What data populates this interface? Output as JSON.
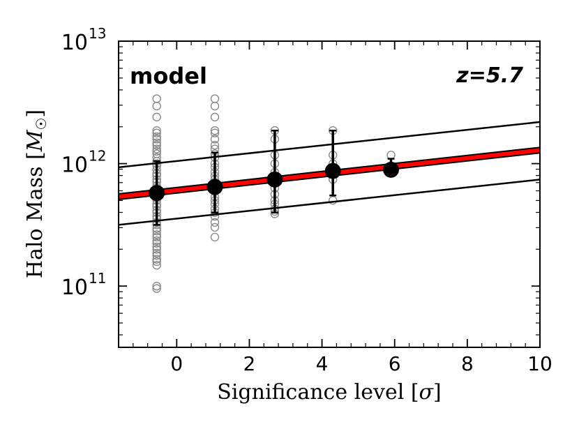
{
  "chart_data": {
    "type": "scatter",
    "xlabel": "Significance level [σ]",
    "xlabel_prefix": "Significance level [",
    "xlabel_symbol": "σ",
    "xlabel_suffix": "]",
    "ylabel": "Halo Mass [M☉]",
    "ylabel_prefix": "Halo Mass [",
    "ylabel_symbol": "M",
    "ylabel_sub": "☉",
    "ylabel_suffix": "]",
    "xlim": [
      -1.6,
      10
    ],
    "ylim_log10": [
      10.5,
      13
    ],
    "yscale": "log",
    "x_ticks": [
      0,
      2,
      4,
      6,
      8,
      10
    ],
    "x_tick_labels": [
      "0",
      "2",
      "4",
      "6",
      "8",
      "10"
    ],
    "y_ticks_log10": [
      11,
      12,
      13
    ],
    "y_tick_labels": [
      {
        "base": "10",
        "exp": "11"
      },
      {
        "base": "10",
        "exp": "12"
      },
      {
        "base": "10",
        "exp": "13"
      }
    ],
    "annotations": {
      "model": "model",
      "redshift": "z=5.7"
    },
    "colors": {
      "fit": "#ff0000",
      "bounds": "#000000",
      "points": "#8a8a8a",
      "means": "#000000"
    },
    "individual_halos": [
      {
        "x": -0.55,
        "log10_mass": [
          12.53,
          12.47,
          12.38,
          12.27,
          12.25,
          12.22,
          12.2,
          12.17,
          12.15,
          12.12,
          12.1,
          12.08,
          12.05,
          12.02,
          12.0,
          11.98,
          11.95,
          11.92,
          11.9,
          11.87,
          11.85,
          11.82,
          11.8,
          11.77,
          11.75,
          11.72,
          11.7,
          11.67,
          11.65,
          11.62,
          11.6,
          11.57,
          11.55,
          11.52,
          11.5,
          11.47,
          11.45,
          11.42,
          11.4,
          11.37,
          11.35,
          11.32,
          11.3,
          11.27,
          11.25,
          11.22,
          11.2,
          11.17,
          11.0,
          10.98
        ]
      },
      {
        "x": 1.05,
        "log10_mass": [
          12.53,
          12.47,
          12.38,
          12.27,
          12.25,
          12.2,
          12.15,
          12.12,
          12.08,
          12.05,
          12.0,
          11.97,
          11.93,
          11.9,
          11.87,
          11.83,
          11.8,
          11.77,
          11.73,
          11.7,
          11.67,
          11.63,
          11.6,
          11.57,
          11.52,
          11.48,
          11.4
        ]
      },
      {
        "x": 2.7,
        "log10_mass": [
          12.27,
          12.2,
          12.07,
          12.0,
          11.93,
          11.87,
          11.8,
          11.75,
          11.7,
          11.67,
          11.63,
          11.61,
          11.59
        ]
      },
      {
        "x": 4.3,
        "log10_mass": [
          12.27,
          12.07,
          12.0,
          11.87,
          11.7
        ]
      },
      {
        "x": 5.9,
        "log10_mass": [
          12.07
        ]
      }
    ],
    "binned_means": [
      {
        "x": -0.55,
        "log10_mass": 11.76,
        "err_low": 11.5,
        "err_high": 12.02
      },
      {
        "x": 1.05,
        "log10_mass": 11.81,
        "err_low": 11.6,
        "err_high": 12.09
      },
      {
        "x": 2.7,
        "log10_mass": 11.87,
        "err_low": 11.6,
        "err_high": 12.27
      },
      {
        "x": 4.3,
        "log10_mass": 11.94,
        "err_low": 11.74,
        "err_high": 12.27
      },
      {
        "x": 5.9,
        "log10_mass": 11.95,
        "err_low": 11.9,
        "err_high": 12.04
      }
    ],
    "fit_lines": [
      {
        "name": "best-fit",
        "x": [
          -1.6,
          10
        ],
        "log10_mass": [
          11.73,
          12.11
        ]
      },
      {
        "name": "upper-bound",
        "x": [
          -1.6,
          10
        ],
        "log10_mass": [
          11.97,
          12.34
        ]
      },
      {
        "name": "lower-bound",
        "x": [
          -1.6,
          10
        ],
        "log10_mass": [
          11.5,
          11.87
        ]
      }
    ]
  }
}
